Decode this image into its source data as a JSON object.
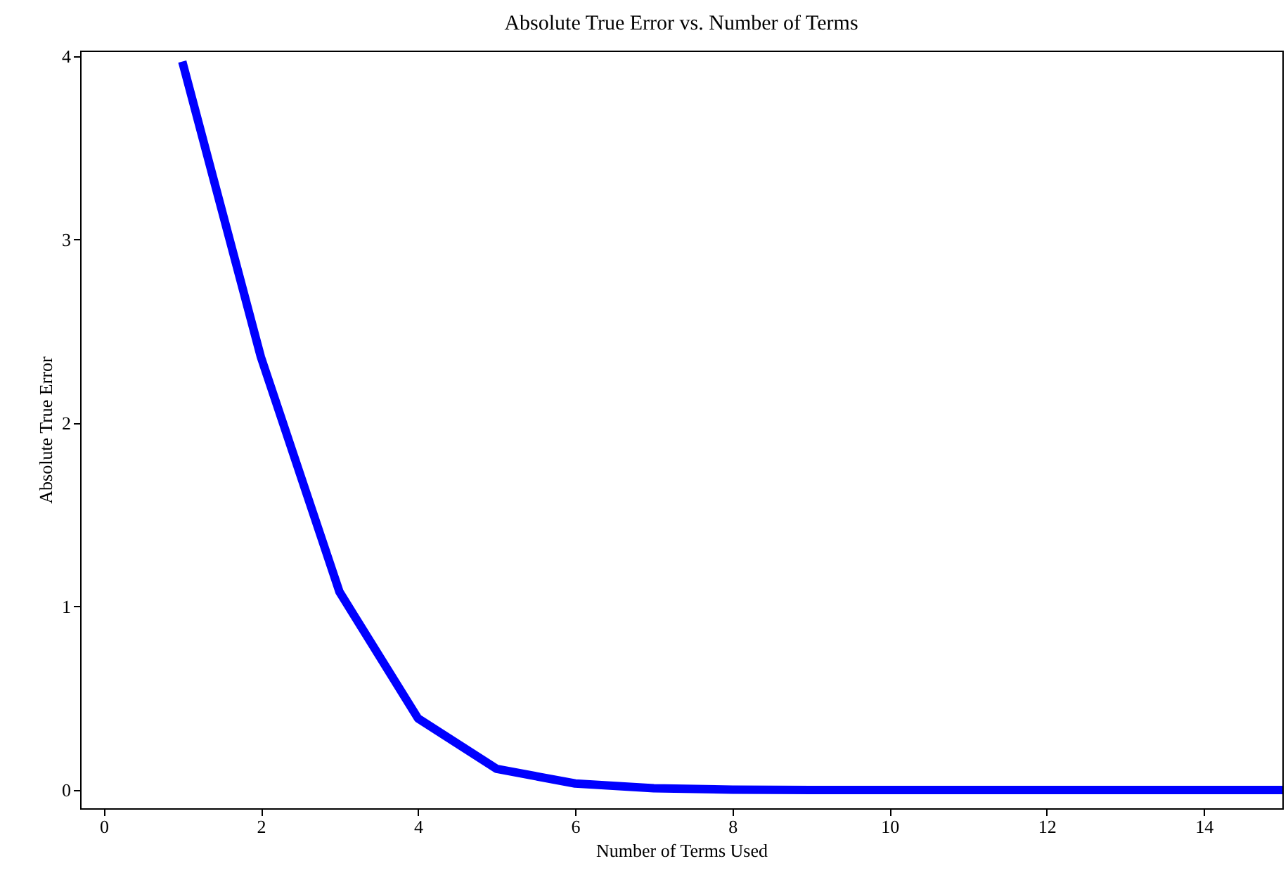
{
  "chart_data": {
    "type": "line",
    "title": "Absolute True Error vs. Number of Terms",
    "xlabel": "Number of Terms Used",
    "ylabel": "Absolute True Error",
    "x": [
      1,
      2,
      3,
      4,
      5,
      6,
      7,
      8,
      9,
      10,
      11,
      12,
      13,
      14,
      15
    ],
    "series": [
      {
        "color": "#0000ff",
        "values": [
          3.97,
          2.36,
          1.08,
          0.39,
          0.115,
          0.035,
          0.009,
          0.002,
          0,
          0,
          0,
          0,
          0,
          0,
          0
        ]
      }
    ],
    "xlim": [
      -0.3,
      15
    ],
    "xticks": [
      0,
      2,
      4,
      6,
      8,
      10,
      12,
      14
    ],
    "ylim": [
      -0.1,
      4.03
    ],
    "yticks": [
      0,
      1,
      2,
      3,
      4
    ],
    "grid": false,
    "legend": false,
    "marker": "none",
    "line_style": "solid"
  }
}
